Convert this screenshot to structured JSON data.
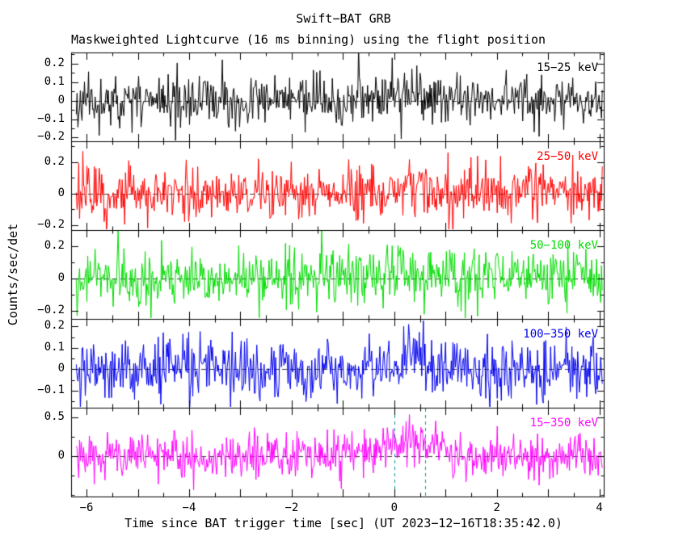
{
  "chart_data": {
    "type": "line",
    "title": "Swift−BAT GRB",
    "subtitle": "Maskweighted Lightcurve (16 ms binning) using the flight position",
    "xlabel": "Time since BAT trigger time [sec] (UT 2023−12−16T18:35:42.0)",
    "ylabel": "Counts/sec/det",
    "grid": false,
    "legend": "in-panel energy-band labels, top right of each panel",
    "x_range": [
      -6.3,
      4.1
    ],
    "data_start": -6.2,
    "data_end": 4.05,
    "bin_seconds": 0.016,
    "x_ticks": [
      {
        "value": -6,
        "label": "−6"
      },
      {
        "value": -4,
        "label": "−4"
      },
      {
        "value": -2,
        "label": "−2"
      },
      {
        "value": 0,
        "label": "0"
      },
      {
        "value": 2,
        "label": "2"
      },
      {
        "value": 4,
        "label": "4"
      }
    ],
    "x_major_tick_step": 1.0,
    "x_minor_tick_step": 0.5,
    "zero_line": {
      "value": 0,
      "color": "#3a3a3a",
      "style": "dashed"
    },
    "trigger_interval": {
      "panel_index": 4,
      "start": 0.0,
      "end": 0.6,
      "color": "#009999",
      "style": "dashed"
    },
    "burst": {
      "center": 0.3,
      "width": 0.4
    },
    "panels": [
      {
        "label": "15−25 keV",
        "color": "#000000",
        "y_lim": [
          -0.22,
          0.26
        ],
        "y_ticks": [
          {
            "value": 0.2,
            "label": "0.2"
          },
          {
            "value": 0.1,
            "label": "0.1"
          },
          {
            "value": 0,
            "label": "0"
          },
          {
            "value": -0.1,
            "label": "−0.1"
          },
          {
            "value": -0.2,
            "label": "−0.2"
          }
        ],
        "noise_sigma": 0.065,
        "burst_peak": 0.02,
        "seed": 11
      },
      {
        "label": "25−50 keV",
        "color": "#ff0000",
        "y_lim": [
          -0.23,
          0.33
        ],
        "y_ticks": [
          {
            "value": 0.2,
            "label": "0.2"
          },
          {
            "value": 0,
            "label": "0"
          },
          {
            "value": -0.2,
            "label": "−0.2"
          }
        ],
        "noise_sigma": 0.085,
        "burst_peak": 0.03,
        "seed": 22
      },
      {
        "label": "50−100 keV",
        "color": "#00dd00",
        "y_lim": [
          -0.25,
          0.3
        ],
        "y_ticks": [
          {
            "value": 0.2,
            "label": "0.2"
          },
          {
            "value": 0,
            "label": "0"
          },
          {
            "value": -0.2,
            "label": "−0.2"
          }
        ],
        "noise_sigma": 0.085,
        "burst_peak": 0.05,
        "seed": 33
      },
      {
        "label": "100−350 keV",
        "color": "#0000ee",
        "y_lim": [
          -0.18,
          0.235
        ],
        "y_ticks": [
          {
            "value": 0.2,
            "label": "0.2"
          },
          {
            "value": 0.1,
            "label": "0.1"
          },
          {
            "value": 0,
            "label": "0"
          },
          {
            "value": -0.1,
            "label": "−0.1"
          }
        ],
        "noise_sigma": 0.07,
        "burst_peak": 0.05,
        "seed": 44
      },
      {
        "label": "15−350 keV",
        "color": "#ff00ff",
        "y_lim": [
          -0.52,
          0.63
        ],
        "y_ticks": [
          {
            "value": 0.5,
            "label": "0.5"
          },
          {
            "value": 0,
            "label": "0"
          }
        ],
        "noise_sigma": 0.15,
        "burst_peak": 0.18,
        "seed": 55
      }
    ],
    "data_note": "Mask-weighted, background-dominated count-rate traces: zero-mean noise at 16 ms bins with a weak enhancement near the trigger; regenerated deterministically from the per-panel seed/sigma/burst parameters above."
  }
}
